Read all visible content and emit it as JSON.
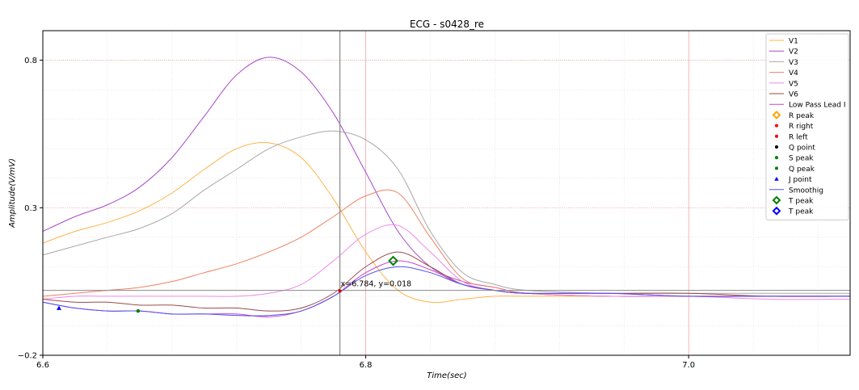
{
  "chart_data": {
    "type": "line",
    "title": "ECG - s0428_re",
    "xlabel": "Time(sec)",
    "ylabel": "Amplitude(V/mV)",
    "xlim": [
      6.6,
      7.1
    ],
    "ylim": [
      -0.2,
      0.9
    ],
    "xticks": [
      6.6,
      6.8,
      7.0
    ],
    "xtick_labels": [
      "6.6",
      "6.8",
      "7.0"
    ],
    "yticks": [
      -0.2,
      0.3,
      0.8
    ],
    "ytick_labels": [
      "−0.2",
      "0.3",
      "0.8"
    ],
    "grid": true,
    "legend_position": "top-right",
    "cursor": {
      "x": 6.784,
      "y": 0.018,
      "label": "x=6.784, y=0.018",
      "hline_y": 0.02
    },
    "series": [
      {
        "name": "V1",
        "color": "#ffb347",
        "style": "line",
        "x": [
          6.6,
          6.62,
          6.64,
          6.66,
          6.68,
          6.7,
          6.72,
          6.74,
          6.76,
          6.78,
          6.8,
          6.82,
          6.84,
          6.86,
          6.88,
          6.9,
          6.95,
          7.0,
          7.05,
          7.1
        ],
        "y": [
          0.18,
          0.22,
          0.25,
          0.29,
          0.35,
          0.43,
          0.5,
          0.52,
          0.47,
          0.33,
          0.15,
          0.02,
          -0.02,
          -0.01,
          0.0,
          0.0,
          0.0,
          0.0,
          0.0,
          0.0
        ]
      },
      {
        "name": "V2",
        "color": "#a84ac8",
        "style": "line",
        "x": [
          6.6,
          6.62,
          6.64,
          6.66,
          6.68,
          6.7,
          6.72,
          6.74,
          6.76,
          6.78,
          6.8,
          6.82,
          6.84,
          6.86,
          6.88,
          6.9,
          6.95,
          7.0,
          7.05,
          7.1
        ],
        "y": [
          0.22,
          0.27,
          0.31,
          0.37,
          0.47,
          0.61,
          0.75,
          0.81,
          0.76,
          0.62,
          0.42,
          0.22,
          0.1,
          0.05,
          0.03,
          0.01,
          0.0,
          0.0,
          0.0,
          0.0
        ]
      },
      {
        "name": "V3",
        "color": "#a8a8a8",
        "style": "line",
        "x": [
          6.6,
          6.62,
          6.64,
          6.66,
          6.68,
          6.7,
          6.72,
          6.74,
          6.76,
          6.78,
          6.8,
          6.82,
          6.84,
          6.86,
          6.88,
          6.9,
          6.95,
          7.0,
          7.05,
          7.1
        ],
        "y": [
          0.14,
          0.17,
          0.2,
          0.23,
          0.28,
          0.36,
          0.43,
          0.5,
          0.54,
          0.56,
          0.53,
          0.43,
          0.22,
          0.08,
          0.04,
          0.02,
          0.01,
          0.01,
          0.01,
          0.01
        ]
      },
      {
        "name": "V4",
        "color": "#f08060",
        "style": "line",
        "x": [
          6.6,
          6.62,
          6.64,
          6.66,
          6.68,
          6.7,
          6.72,
          6.74,
          6.76,
          6.78,
          6.8,
          6.82,
          6.84,
          6.86,
          6.88,
          6.9,
          6.95,
          7.0,
          7.05,
          7.1
        ],
        "y": [
          0.0,
          0.01,
          0.02,
          0.03,
          0.05,
          0.08,
          0.11,
          0.15,
          0.2,
          0.27,
          0.34,
          0.35,
          0.2,
          0.06,
          0.03,
          0.01,
          0.0,
          0.0,
          0.0,
          0.0
        ]
      },
      {
        "name": "V5",
        "color": "#ee88ee",
        "style": "line",
        "x": [
          6.6,
          6.62,
          6.64,
          6.66,
          6.68,
          6.7,
          6.72,
          6.74,
          6.76,
          6.78,
          6.8,
          6.82,
          6.84,
          6.86,
          6.88,
          6.9,
          6.95,
          7.0,
          7.05,
          7.1
        ],
        "y": [
          -0.01,
          0.0,
          0.0,
          0.0,
          0.0,
          0.0,
          0.0,
          0.01,
          0.04,
          0.12,
          0.21,
          0.24,
          0.15,
          0.05,
          0.02,
          0.01,
          0.0,
          0.0,
          -0.01,
          -0.01
        ]
      },
      {
        "name": "V6",
        "color": "#9b4a4a",
        "style": "line",
        "x": [
          6.6,
          6.62,
          6.64,
          6.66,
          6.68,
          6.7,
          6.72,
          6.74,
          6.76,
          6.78,
          6.8,
          6.82,
          6.84,
          6.86,
          6.88,
          6.9,
          6.95,
          7.0,
          7.05,
          7.1
        ],
        "y": [
          -0.01,
          -0.02,
          -0.02,
          -0.03,
          -0.03,
          -0.04,
          -0.04,
          -0.05,
          -0.04,
          0.01,
          0.1,
          0.15,
          0.1,
          0.04,
          0.02,
          0.01,
          0.01,
          0.01,
          0.0,
          0.0
        ]
      },
      {
        "name": "Low Pass Lead I",
        "color": "#cc44cc",
        "style": "line",
        "x": [
          6.6,
          6.62,
          6.64,
          6.66,
          6.68,
          6.7,
          6.72,
          6.74,
          6.76,
          6.78,
          6.8,
          6.82,
          6.84,
          6.86,
          6.88,
          6.9,
          6.95,
          7.0,
          7.05,
          7.1
        ],
        "y": [
          -0.02,
          -0.04,
          -0.05,
          -0.05,
          -0.06,
          -0.06,
          -0.06,
          -0.07,
          -0.05,
          0.0,
          0.08,
          0.12,
          0.09,
          0.04,
          0.02,
          0.01,
          0.01,
          0.0,
          0.0,
          0.0
        ]
      },
      {
        "name": "R peak",
        "color": "#ffa500",
        "style": "diamond-open",
        "x": [],
        "y": []
      },
      {
        "name": "R right",
        "color": "#ff0000",
        "style": "dot",
        "x": [],
        "y": []
      },
      {
        "name": "R left",
        "color": "#ff0000",
        "style": "dot",
        "x": [],
        "y": []
      },
      {
        "name": "Q point",
        "color": "#000000",
        "style": "dot",
        "x": [],
        "y": []
      },
      {
        "name": "S peak",
        "color": "#008000",
        "style": "dot",
        "x": [
          6.659
        ],
        "y": [
          -0.05
        ]
      },
      {
        "name": "Q peak",
        "color": "#008000",
        "style": "dot",
        "x": [],
        "y": []
      },
      {
        "name": "J point",
        "color": "#0000ff",
        "style": "triangle",
        "x": [
          6.61
        ],
        "y": [
          -0.04
        ]
      },
      {
        "name": "Smoothig",
        "color": "#5050ee",
        "style": "line",
        "x": [
          6.6,
          6.62,
          6.64,
          6.66,
          6.68,
          6.7,
          6.72,
          6.74,
          6.76,
          6.78,
          6.8,
          6.82,
          6.84,
          6.86,
          6.88,
          6.9,
          6.95,
          7.0,
          7.05,
          7.1
        ],
        "y": [
          -0.02,
          -0.04,
          -0.05,
          -0.05,
          -0.06,
          -0.06,
          -0.065,
          -0.065,
          -0.05,
          0.0,
          0.07,
          0.1,
          0.08,
          0.04,
          0.02,
          0.01,
          0.01,
          0.0,
          0.0,
          0.0
        ]
      },
      {
        "name": "T peak",
        "color": "#008000",
        "style": "diamond-open",
        "x": [
          6.817
        ],
        "y": [
          0.12
        ]
      },
      {
        "name": "T peak",
        "color": "#0000ff",
        "style": "diamond-open",
        "x": [],
        "y": []
      }
    ]
  }
}
